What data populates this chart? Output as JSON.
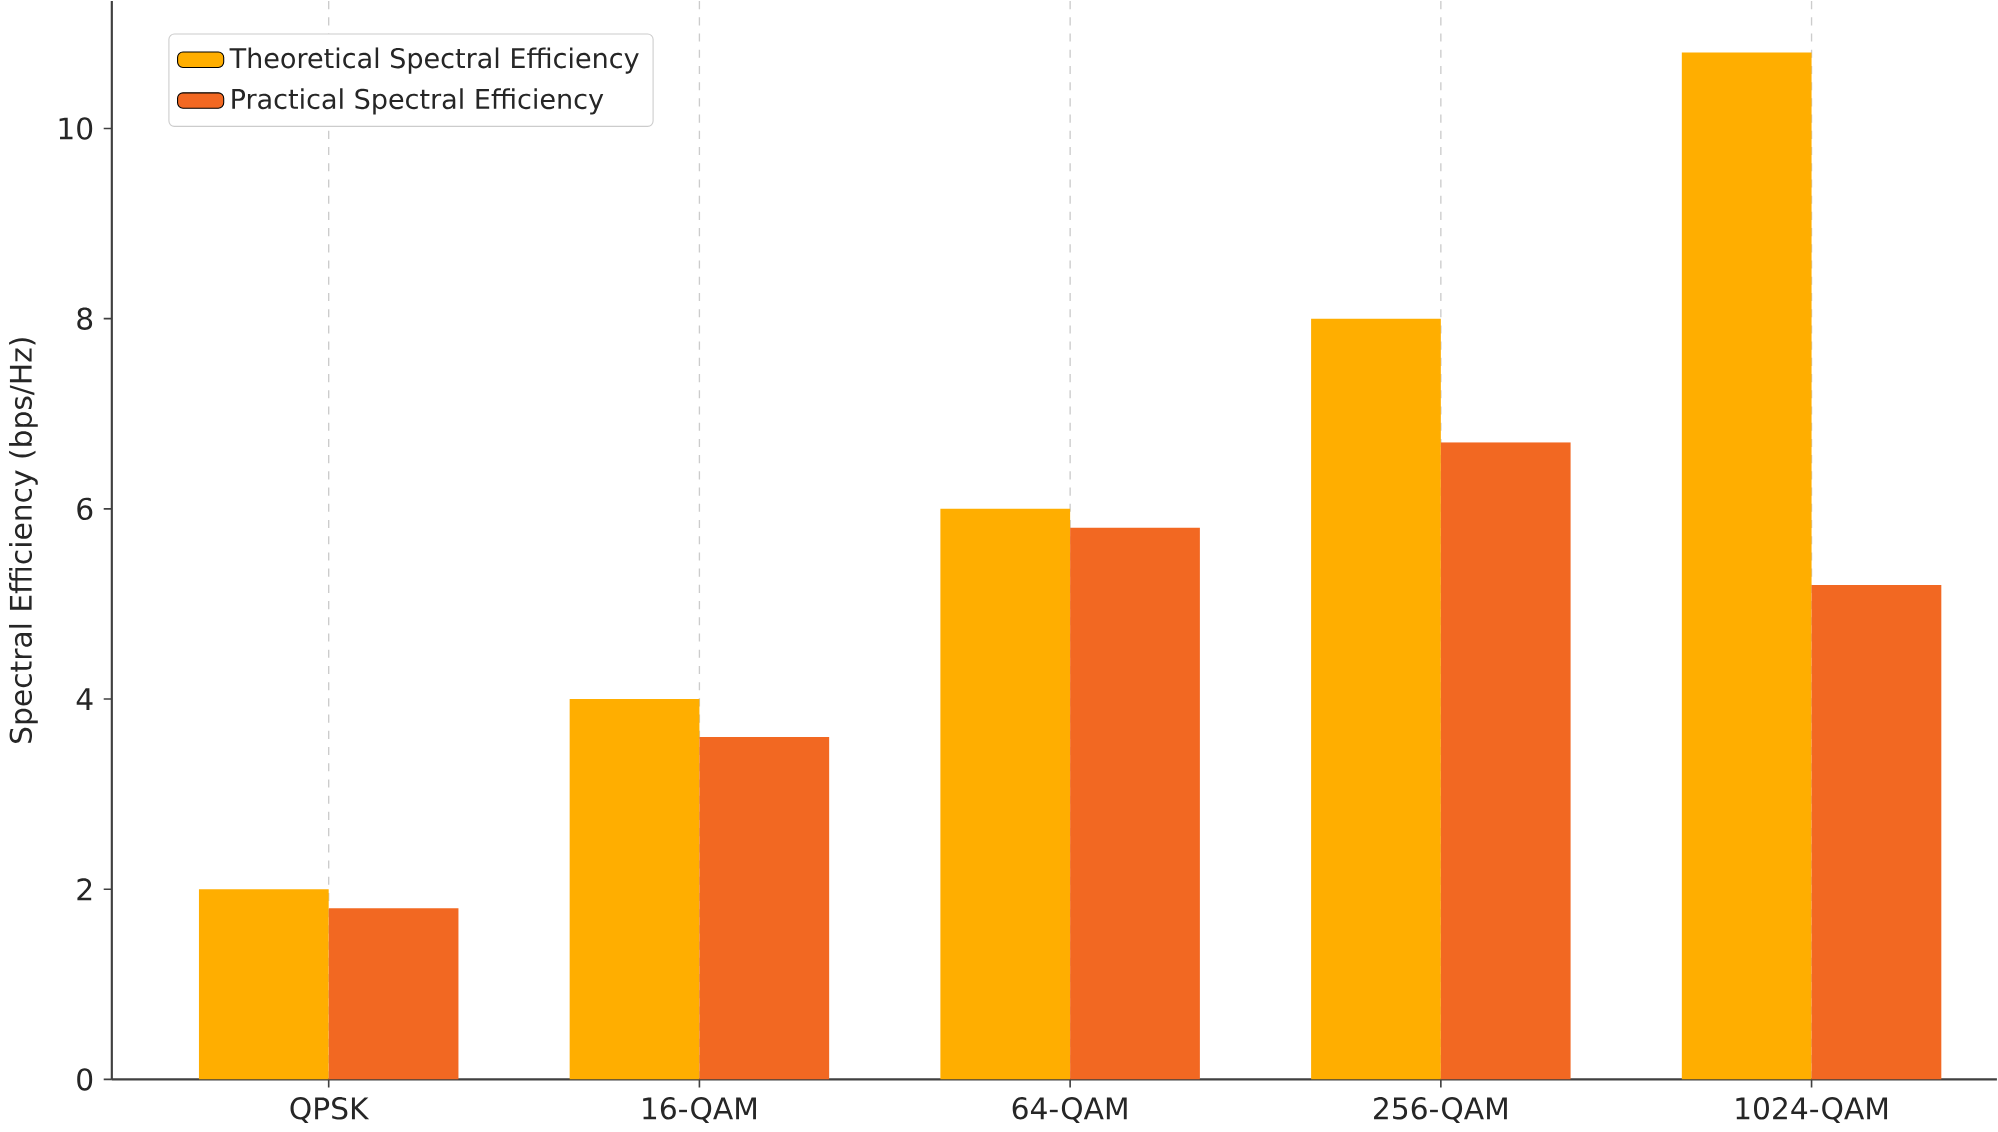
{
  "chart_data": {
    "type": "bar",
    "ylabel": "Spectral Efficiency (bps/Hz)",
    "categories": [
      "QPSK",
      "16-QAM",
      "64-QAM",
      "256-QAM",
      "1024-QAM"
    ],
    "series": [
      {
        "name": "Theoretical Spectral Efficiency",
        "color": "#ffae00",
        "values": [
          2,
          4,
          6,
          8,
          10.8
        ]
      },
      {
        "name": "Practical Spectral Efficiency",
        "color": "#f26822",
        "values": [
          1.8,
          3.6,
          5.8,
          6.7,
          5.2
        ]
      }
    ],
    "ylim": [
      0,
      11.34
    ],
    "yticks": [
      0,
      2,
      4,
      6,
      8,
      10
    ],
    "grid": "x",
    "legend": "top left"
  }
}
